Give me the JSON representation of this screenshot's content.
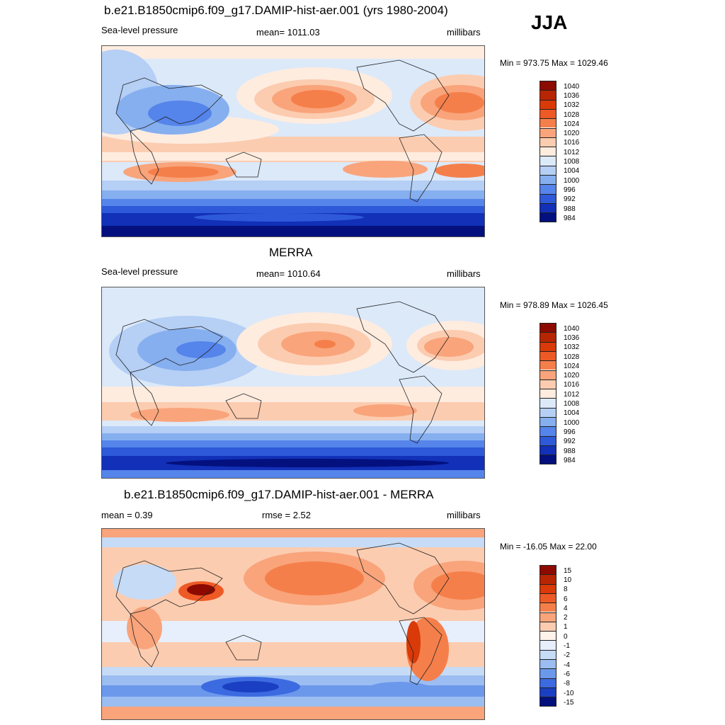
{
  "season": "JJA",
  "panels": [
    {
      "title": "b.e21.B1850cmip6.f09_g17.DAMIP-hist-aer.001 (yrs 1980-2004)",
      "left_label": "Sea-level pressure",
      "center_label": "mean= 1011.03",
      "right_label": "millibars",
      "minmax": "Min = 973.75 Max = 1029.46",
      "levels": [
        "1040",
        "1036",
        "1032",
        "1028",
        "1024",
        "1020",
        "1016",
        "1012",
        "1008",
        "1004",
        "1000",
        "996",
        "992",
        "988",
        "984"
      ]
    },
    {
      "title": "MERRA",
      "left_label": "Sea-level pressure",
      "center_label": "mean= 1010.64",
      "right_label": "millibars",
      "minmax": "Min = 978.89 Max = 1026.45",
      "levels": [
        "1040",
        "1036",
        "1032",
        "1028",
        "1024",
        "1020",
        "1016",
        "1012",
        "1008",
        "1004",
        "1000",
        "996",
        "992",
        "988",
        "984"
      ]
    },
    {
      "title": "b.e21.B1850cmip6.f09_g17.DAMIP-hist-aer.001 - MERRA",
      "left_label": "mean =   0.39",
      "center_label": "rmse =   2.52",
      "right_label": "millibars",
      "minmax": "Min = -16.05 Max =  22.00",
      "levels": [
        "15",
        "10",
        "8",
        "6",
        "4",
        "2",
        "1",
        "0",
        "-1",
        "-2",
        "-4",
        "-6",
        "-8",
        "-10",
        "-15"
      ]
    }
  ],
  "colors": {
    "abs_scale": [
      "#8c0a00",
      "#b82503",
      "#d93a08",
      "#ee5a25",
      "#f57f4a",
      "#f9a47b",
      "#fcccb0",
      "#feecdf",
      "#dce9f9",
      "#b5cff5",
      "#86aff0",
      "#5584ea",
      "#2e59d9",
      "#1230b8",
      "#03107e"
    ],
    "diff_scale": [
      "#8c0a00",
      "#b82503",
      "#d93a08",
      "#ee5a25",
      "#f57f4a",
      "#f9a47b",
      "#fcccb0",
      "#fff3ea",
      "#e6effb",
      "#c6dbf6",
      "#9bbdf1",
      "#6c98eb",
      "#3c6ae0",
      "#1b3fc2",
      "#03107e"
    ]
  }
}
